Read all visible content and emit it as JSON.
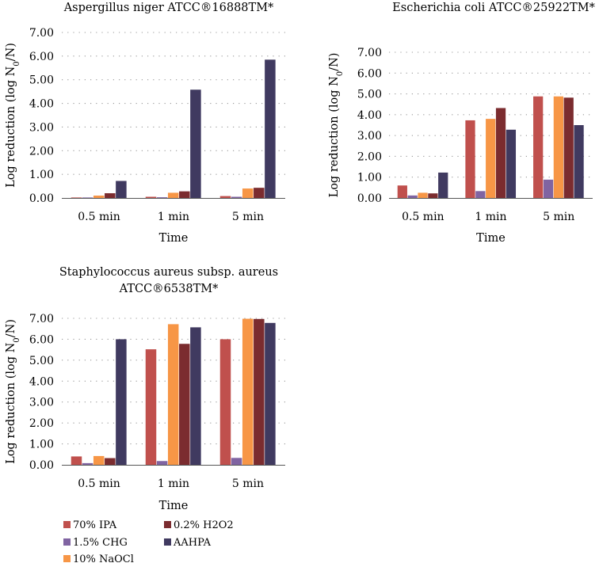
{
  "colors": {
    "70% IPA": "#c0504d",
    "1.5% CHG": "#8064a2",
    "10% NaOCl": "#f79646",
    "0.2% H2O2": "#7b2c2f",
    "AAHPA": "#403a60"
  },
  "legend": {
    "items": [
      "70% IPA",
      "1.5% CHG",
      "10% NaOCl",
      "0.2% H2O2",
      "AAHPA"
    ]
  },
  "chart_data": [
    {
      "type": "bar",
      "title_lines": [
        "Aspergillus niger ATCC®16888TM*"
      ],
      "xlabel": "Time",
      "ylabel": "Log reduction (log N0/N)",
      "ylim": [
        0,
        7
      ],
      "yticks": [
        "0.00",
        "1.00",
        "2.00",
        "3.00",
        "4.00",
        "5.00",
        "6.00",
        "7.00"
      ],
      "categories": [
        "0.5 min",
        "1 min",
        "5 min"
      ],
      "series": [
        {
          "name": "70% IPA",
          "values": [
            0.02,
            0.05,
            0.08
          ]
        },
        {
          "name": "1.5% CHG",
          "values": [
            0.02,
            0.03,
            0.05
          ]
        },
        {
          "name": "10% NaOCl",
          "values": [
            0.1,
            0.22,
            0.4
          ]
        },
        {
          "name": "0.2% H2O2",
          "values": [
            0.2,
            0.28,
            0.43
          ]
        },
        {
          "name": "AAHPA",
          "values": [
            0.72,
            4.58,
            5.85
          ]
        }
      ]
    },
    {
      "type": "bar",
      "title_lines": [
        "Escherichia coli ATCC®25922TM*"
      ],
      "xlabel": "Time",
      "ylabel": "Log reduction (log N0/N)",
      "ylim": [
        0,
        7
      ],
      "yticks": [
        "0.00",
        "1.00",
        "2.00",
        "3.00",
        "4.00",
        "5.00",
        "6.00",
        "7.00"
      ],
      "categories": [
        "0.5 min",
        "1 min",
        "5 min"
      ],
      "series": [
        {
          "name": "70% IPA",
          "values": [
            0.6,
            3.73,
            4.88
          ]
        },
        {
          "name": "1.5% CHG",
          "values": [
            0.12,
            0.33,
            0.88
          ]
        },
        {
          "name": "10% NaOCl",
          "values": [
            0.25,
            3.8,
            4.88
          ]
        },
        {
          "name": "0.2% H2O2",
          "values": [
            0.22,
            4.32,
            4.82
          ]
        },
        {
          "name": "AAHPA",
          "values": [
            1.22,
            3.28,
            3.5
          ]
        }
      ]
    },
    {
      "type": "bar",
      "title_lines": [
        "Staphylococcus aureus subsp. aureus",
        "ATCC®6538TM*"
      ],
      "xlabel": "Time",
      "ylabel": "Log reduction (log N0/N)",
      "ylim": [
        0,
        7
      ],
      "yticks": [
        "0.00",
        "1.00",
        "2.00",
        "3.00",
        "4.00",
        "5.00",
        "6.00",
        "7.00"
      ],
      "categories": [
        "0.5 min",
        "1 min",
        "5 min"
      ],
      "series": [
        {
          "name": "70% IPA",
          "values": [
            0.4,
            5.52,
            6.0
          ]
        },
        {
          "name": "1.5% CHG",
          "values": [
            0.08,
            0.18,
            0.33
          ]
        },
        {
          "name": "10% NaOCl",
          "values": [
            0.42,
            6.72,
            6.98
          ]
        },
        {
          "name": "0.2% H2O2",
          "values": [
            0.32,
            5.78,
            6.97
          ]
        },
        {
          "name": "AAHPA",
          "values": [
            6.0,
            6.57,
            6.78
          ]
        }
      ]
    }
  ]
}
